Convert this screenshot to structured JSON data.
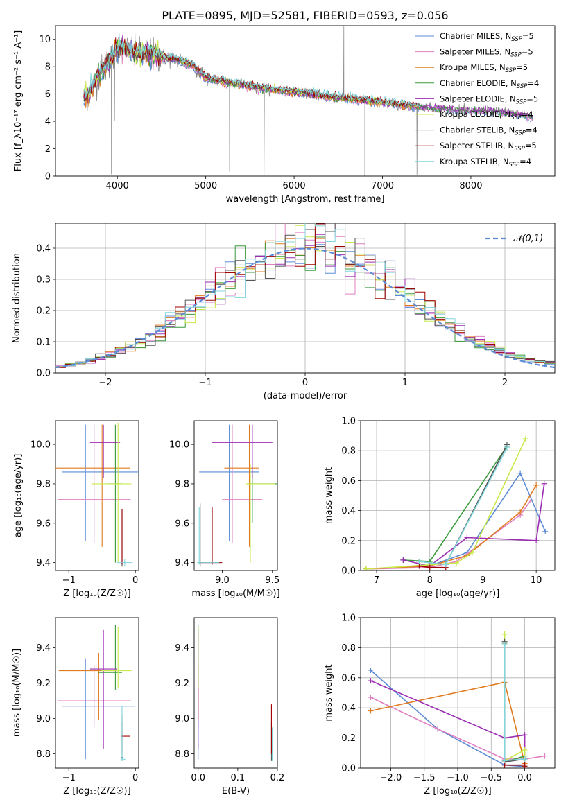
{
  "figure": {
    "title": "PLATE=0895, MJD=52581, FIBERID=0593, z=0.056"
  },
  "colors": {
    "Chabrier MILES": "#5b8bd6",
    "Salpeter MILES": "#e07fc2",
    "Kroupa MILES": "#e07b1f",
    "Chabrier ELODIE": "#3a9a3a",
    "Salpeter ELODIE": "#9b2db3",
    "Kroupa ELODIE": "#c7e94a",
    "Chabrier STELIB": "#555555",
    "Salpeter STELIB": "#a00000",
    "Kroupa STELIB": "#7fd6dd",
    "data": "#808080",
    "normal": "#5b8bd6"
  },
  "chart_data": [
    {
      "id": "spectrum",
      "type": "line",
      "xlabel": "wavelength [Angstrom, rest frame]",
      "ylabel": "Flux [f_λ 10^-17 erg cm^-2 s^-1 A^-1]",
      "xlim": [
        3300,
        8950
      ],
      "ylim": [
        0,
        11
      ],
      "xticks": [
        4000,
        5000,
        6000,
        7000,
        8000
      ],
      "yticks": [
        0,
        2,
        4,
        6,
        8,
        10
      ],
      "legend_position": "top-right",
      "legend": [
        "Chabrier MILES, N_SSP=5",
        "Salpeter MILES, N_SSP=5",
        "Kroupa MILES, N_SSP=5",
        "Chabrier ELODIE, N_SSP=4",
        "Salpeter ELODIE, N_SSP=5",
        "Kroupa ELODIE, N_SSP=4",
        "Chabrier STELIB, N_SSP=4",
        "Salpeter STELIB, N_SSP=5",
        "Kroupa STELIB, N_SSP=4"
      ],
      "continuum_x": [
        3620,
        3700,
        3800,
        3900,
        3950,
        4000,
        4100,
        4200,
        4300,
        4400,
        4500,
        4700,
        4860,
        4900,
        5000,
        5200,
        5400,
        5600,
        5800,
        6000,
        6200,
        6400,
        6600,
        6800,
        7000,
        7200,
        7400,
        7600,
        7800,
        8000,
        8200,
        8400,
        8600,
        8700
      ],
      "continuum_y": [
        5.8,
        6.2,
        7.5,
        8.3,
        8.8,
        9.4,
        9.3,
        9.0,
        8.9,
        8.9,
        8.7,
        8.5,
        8.1,
        7.8,
        7.2,
        6.9,
        6.7,
        6.5,
        6.3,
        6.2,
        6.0,
        5.8,
        5.7,
        5.5,
        5.4,
        5.2,
        5.1,
        5.0,
        4.9,
        4.8,
        4.8,
        4.7,
        4.5,
        4.3
      ],
      "absorption_lines": [
        {
          "x": 3933,
          "depth": 8.5
        },
        {
          "x": 3968,
          "depth": 5.0
        },
        {
          "x": 5270,
          "depth": 6.5
        },
        {
          "x": 5660,
          "depth": 6.5
        },
        {
          "x": 6800,
          "depth": 6.0
        },
        {
          "x": 7390,
          "depth": 5.0
        }
      ],
      "emission_lines": [
        {
          "x": 6563,
          "peak": 11.0
        }
      ]
    },
    {
      "id": "residuals",
      "type": "histogram",
      "xlabel": "(data-model)/error",
      "ylabel": "Normed distribution",
      "xlim": [
        -2.5,
        2.5
      ],
      "ylim": [
        0,
        0.48
      ],
      "xticks": [
        -2,
        -1,
        0,
        1,
        2
      ],
      "yticks": [
        0.0,
        0.1,
        0.2,
        0.3,
        0.4
      ],
      "legend": [
        "𝒩(0,1)"
      ],
      "legend_position": "top-right",
      "bin_width": 0.1,
      "normal": {
        "mean": 0,
        "sigma": 1
      }
    },
    {
      "id": "age-vs-Z",
      "type": "errorbar",
      "xlabel": "Z [log10(Z/Z⊙)]",
      "ylabel": "age [log10(age/yr)]",
      "xlim": [
        -1.2,
        0.05
      ],
      "ylim": [
        9.36,
        10.12
      ],
      "xticks": [
        -1,
        0
      ],
      "yticks": [
        9.4,
        9.6,
        9.8,
        10.0
      ],
      "points": [
        {
          "model": "Chabrier MILES",
          "x": -0.75,
          "xerr": [
            0.35,
            0.9
          ],
          "y": 9.86,
          "yerr": [
            0.35,
            0.24
          ]
        },
        {
          "model": "Salpeter MILES",
          "x": -0.62,
          "xerr": [
            0.55,
            0.55
          ],
          "y": 9.72,
          "yerr": [
            0.22,
            0.38
          ]
        },
        {
          "model": "Kroupa MILES",
          "x": -0.5,
          "xerr": [
            0.75,
            0.42
          ],
          "y": 9.88,
          "yerr": [
            0.4,
            0.22
          ]
        },
        {
          "model": "Chabrier ELODIE",
          "x": -0.3,
          "xerr": [
            0.1,
            0.1
          ],
          "y": 9.8,
          "yerr": [
            0.4,
            0.3
          ]
        },
        {
          "model": "Salpeter ELODIE",
          "x": -0.48,
          "xerr": [
            0.2,
            0.25
          ],
          "y": 10.01,
          "yerr": [
            0.18,
            0.09
          ]
        },
        {
          "model": "Kroupa ELODIE",
          "x": -0.26,
          "xerr": [
            0.4,
            0.2
          ],
          "y": 9.8,
          "yerr": [
            0.4,
            0.31
          ]
        },
        {
          "model": "Chabrier STELIB",
          "x": -0.2,
          "xerr": [
            0.02,
            0.02
          ],
          "y": 9.4,
          "yerr": [
            0.02,
            0.27
          ]
        },
        {
          "model": "Salpeter STELIB",
          "x": -0.2,
          "xerr": [
            0.02,
            0.02
          ],
          "y": 9.4,
          "yerr": [
            0.01,
            0.27
          ]
        },
        {
          "model": "Kroupa STELIB",
          "x": -0.16,
          "xerr": [
            0.12,
            0.12
          ],
          "y": 9.4,
          "yerr": [
            0.02,
            0.02
          ]
        }
      ]
    },
    {
      "id": "age-vs-mass",
      "type": "errorbar",
      "xlabel": "mass [log10(M/M⊙)]",
      "ylabel": "",
      "xlim": [
        8.72,
        9.55
      ],
      "ylim": [
        9.36,
        10.12
      ],
      "xticks": [
        9.0,
        9.5
      ],
      "yticks": [
        9.4,
        9.6,
        9.8,
        10.0
      ],
      "points": [
        {
          "model": "Chabrier MILES",
          "x": 9.07,
          "xerr": [
            0.3,
            0.3
          ],
          "y": 9.86,
          "yerr": [
            0.35,
            0.24
          ]
        },
        {
          "model": "Salpeter MILES",
          "x": 9.1,
          "xerr": [
            0.1,
            0.3
          ],
          "y": 9.72,
          "yerr": [
            0.22,
            0.38
          ]
        },
        {
          "model": "Kroupa MILES",
          "x": 9.27,
          "xerr": [
            0.25,
            0.1
          ],
          "y": 9.88,
          "yerr": [
            0.4,
            0.22
          ]
        },
        {
          "model": "Chabrier ELODIE",
          "x": 9.3,
          "xerr": [
            0.05,
            0.25
          ],
          "y": 9.8,
          "yerr": [
            0.2,
            0.05
          ]
        },
        {
          "model": "Salpeter ELODIE",
          "x": 9.3,
          "xerr": [
            0.4,
            0.2
          ],
          "y": 10.01,
          "yerr": [
            0.18,
            0.09
          ]
        },
        {
          "model": "Kroupa ELODIE",
          "x": 9.28,
          "xerr": [
            0.05,
            0.25
          ],
          "y": 9.8,
          "yerr": [
            0.4,
            0.1
          ]
        },
        {
          "model": "Chabrier STELIB",
          "x": 8.78,
          "xerr": [
            0.02,
            0.2
          ],
          "y": 9.4,
          "yerr": [
            0.02,
            0.3
          ]
        },
        {
          "model": "Salpeter STELIB",
          "x": 8.9,
          "xerr": [
            0.12,
            0.1
          ],
          "y": 9.4,
          "yerr": [
            0.01,
            0.28
          ]
        },
        {
          "model": "Kroupa STELIB",
          "x": 8.77,
          "xerr": [
            0.02,
            0.2
          ],
          "y": 9.4,
          "yerr": [
            0.01,
            0.28
          ]
        }
      ]
    },
    {
      "id": "weight-vs-age",
      "type": "line",
      "xlabel": "age [log10(age/yr)]",
      "ylabel": "mass weight",
      "xlim": [
        6.7,
        10.35
      ],
      "ylim": [
        0,
        1.0
      ],
      "xticks": [
        7,
        8,
        9,
        10
      ],
      "yticks": [
        0.0,
        0.2,
        0.4,
        0.6,
        0.8,
        1.0
      ],
      "series": [
        {
          "model": "Chabrier MILES",
          "x": [
            6.8,
            8.0,
            8.7,
            9.7,
            10.17
          ],
          "y": [
            0.01,
            0.03,
            0.12,
            0.65,
            0.26
          ]
        },
        {
          "model": "Salpeter MILES",
          "x": [
            6.8,
            8.0,
            8.5,
            9.7,
            9.9
          ],
          "y": [
            0.01,
            0.02,
            0.06,
            0.37,
            0.47
          ]
        },
        {
          "model": "Kroupa MILES",
          "x": [
            6.8,
            8.0,
            8.7,
            9.7,
            10.0
          ],
          "y": [
            0.01,
            0.03,
            0.1,
            0.39,
            0.57
          ]
        },
        {
          "model": "Chabrier ELODIE",
          "x": [
            7.5,
            8.0,
            9.45
          ],
          "y": [
            0.07,
            0.06,
            0.83
          ]
        },
        {
          "model": "Salpeter ELODIE",
          "x": [
            7.5,
            8.0,
            8.7,
            10.0,
            10.15
          ],
          "y": [
            0.07,
            0.03,
            0.22,
            0.2,
            0.58
          ]
        },
        {
          "model": "Kroupa ELODIE",
          "x": [
            6.8,
            8.5,
            8.8,
            9.8
          ],
          "y": [
            0.01,
            0.05,
            0.12,
            0.88
          ]
        },
        {
          "model": "Chabrier STELIB",
          "x": [
            7.8,
            8.3,
            9.45
          ],
          "y": [
            0.06,
            0.04,
            0.84
          ]
        },
        {
          "model": "Salpeter STELIB",
          "x": [
            7.8,
            8.0,
            8.3
          ],
          "y": [
            0.03,
            0.02,
            0.02
          ]
        },
        {
          "model": "Kroupa STELIB",
          "x": [
            7.8,
            8.3,
            9.45
          ],
          "y": [
            0.06,
            0.04,
            0.82
          ]
        }
      ]
    },
    {
      "id": "mass-vs-Z",
      "type": "errorbar",
      "xlabel": "Z [log10(Z/Z⊙)]",
      "ylabel": "mass [log10(M/M⊙)]",
      "xlim": [
        -1.2,
        0.05
      ],
      "ylim": [
        8.72,
        9.57
      ],
      "xticks": [
        -1,
        0
      ],
      "yticks": [
        8.8,
        9.0,
        9.2,
        9.4
      ],
      "points": [
        {
          "model": "Chabrier MILES",
          "x": -0.75,
          "xerr": [
            0.35,
            0.75
          ],
          "y": 9.07,
          "yerr": [
            0.3,
            0.27
          ]
        },
        {
          "model": "Salpeter MILES",
          "x": -0.62,
          "xerr": [
            0.55,
            0.55
          ],
          "y": 9.1,
          "yerr": [
            0.15,
            0.2
          ]
        },
        {
          "model": "Kroupa MILES",
          "x": -0.55,
          "xerr": [
            0.6,
            0.3
          ],
          "y": 9.27,
          "yerr": [
            0.28,
            0.1
          ]
        },
        {
          "model": "Chabrier ELODIE",
          "x": -0.3,
          "xerr": [
            0.25,
            0.1
          ],
          "y": 9.26,
          "yerr": [
            0.1,
            0.27
          ]
        },
        {
          "model": "Salpeter ELODIE",
          "x": -0.48,
          "xerr": [
            0.2,
            0.2
          ],
          "y": 9.28,
          "yerr": [
            0.45,
            0.22
          ]
        },
        {
          "model": "Kroupa ELODIE",
          "x": -0.26,
          "xerr": [
            0.25,
            0.2
          ],
          "y": 9.27,
          "yerr": [
            0.1,
            0.25
          ]
        },
        {
          "model": "Chabrier STELIB",
          "x": -0.2,
          "xerr": [
            0.02,
            0.02
          ],
          "y": 8.78,
          "yerr": [
            0.02,
            0.2
          ]
        },
        {
          "model": "Salpeter STELIB",
          "x": -0.2,
          "xerr": [
            0.02,
            0.12
          ],
          "y": 8.9,
          "yerr": [
            0.1,
            0.12
          ]
        },
        {
          "model": "Kroupa STELIB",
          "x": -0.2,
          "xerr": [
            0.02,
            0.05
          ],
          "y": 8.77,
          "yerr": [
            0.01,
            0.3
          ]
        }
      ]
    },
    {
      "id": "mass-vs-ebv",
      "type": "errorbar",
      "xlabel": "E(B-V)",
      "ylabel": "",
      "xlim": [
        -0.01,
        0.2
      ],
      "ylim": [
        8.72,
        9.57
      ],
      "xticks": [
        0.0,
        0.1,
        0.2
      ],
      "yticks": [
        8.8,
        9.0,
        9.2,
        9.4
      ],
      "points": [
        {
          "model": "Chabrier MILES",
          "x": 0.0,
          "xerr": [
            0.0,
            0.0
          ],
          "y": 9.07,
          "yerr": [
            0.3,
            0.27
          ]
        },
        {
          "model": "Salpeter MILES",
          "x": 0.0,
          "xerr": [
            0.0,
            0.0
          ],
          "y": 9.1,
          "yerr": [
            0.15,
            0.2
          ]
        },
        {
          "model": "Kroupa MILES",
          "x": 0.0,
          "xerr": [
            0.0,
            0.0
          ],
          "y": 9.27,
          "yerr": [
            0.28,
            0.1
          ]
        },
        {
          "model": "Chabrier ELODIE",
          "x": 0.0,
          "xerr": [
            0.0,
            0.0
          ],
          "y": 9.26,
          "yerr": [
            0.1,
            0.27
          ]
        },
        {
          "model": "Salpeter ELODIE",
          "x": 0.0,
          "xerr": [
            0.0,
            0.0
          ],
          "y": 9.28,
          "yerr": [
            0.45,
            0.22
          ]
        },
        {
          "model": "Kroupa ELODIE",
          "x": 0.0,
          "xerr": [
            0.0,
            0.0
          ],
          "y": 9.27,
          "yerr": [
            0.1,
            0.25
          ]
        },
        {
          "model": "Chabrier STELIB",
          "x": 0.185,
          "xerr": [
            0.0,
            0.0
          ],
          "y": 8.78,
          "yerr": [
            0.02,
            0.2
          ]
        },
        {
          "model": "Salpeter STELIB",
          "x": 0.185,
          "xerr": [
            0.0,
            0.0
          ],
          "y": 8.9,
          "yerr": [
            0.1,
            0.18
          ]
        },
        {
          "model": "Kroupa STELIB",
          "x": 0.187,
          "xerr": [
            0.0,
            0.0
          ],
          "y": 8.77,
          "yerr": [
            0.01,
            0.18
          ]
        }
      ]
    },
    {
      "id": "weight-vs-Z",
      "type": "line",
      "xlabel": "Z [log10(Z/Z⊙)]",
      "ylabel": "mass weight",
      "xlim": [
        -2.45,
        0.45
      ],
      "ylim": [
        0,
        1.0
      ],
      "xticks": [
        -2.0,
        -1.5,
        -1.0,
        -0.5,
        0.0
      ],
      "yticks": [
        0.0,
        0.2,
        0.4,
        0.6,
        0.8,
        1.0
      ],
      "series": [
        {
          "model": "Chabrier MILES",
          "x": [
            -2.3,
            -1.3,
            -0.3,
            0.0
          ],
          "y": [
            0.65,
            0.26,
            0.02,
            0.01
          ]
        },
        {
          "model": "Salpeter MILES",
          "x": [
            -2.3,
            -1.3,
            -0.3,
            0.0,
            0.3
          ],
          "y": [
            0.47,
            0.26,
            0.06,
            0.06,
            0.08
          ]
        },
        {
          "model": "Kroupa MILES",
          "x": [
            -2.3,
            -0.3,
            0.0,
            0.0
          ],
          "y": [
            0.38,
            0.57,
            0.03,
            0.01
          ]
        },
        {
          "model": "Chabrier ELODIE",
          "x": [
            -0.3,
            -0.3,
            0.0
          ],
          "y": [
            0.83,
            0.04,
            0.08
          ]
        },
        {
          "model": "Salpeter ELODIE",
          "x": [
            -2.3,
            -0.3,
            0.0,
            0.0
          ],
          "y": [
            0.58,
            0.2,
            0.22,
            0.02
          ]
        },
        {
          "model": "Kroupa ELODIE",
          "x": [
            -0.3,
            -0.3,
            0.0,
            0.0
          ],
          "y": [
            0.89,
            0.05,
            0.12,
            0.01
          ]
        },
        {
          "model": "Chabrier STELIB",
          "x": [
            -0.3,
            -0.3,
            0.0
          ],
          "y": [
            0.84,
            0.04,
            0.06
          ]
        },
        {
          "model": "Salpeter STELIB",
          "x": [
            -0.3,
            -0.3,
            0.0,
            0.0
          ],
          "y": [
            0.05,
            0.02,
            0.02,
            0.01
          ]
        },
        {
          "model": "Kroupa STELIB",
          "x": [
            -0.3,
            -0.3,
            0.0
          ],
          "y": [
            0.82,
            0.05,
            0.06
          ]
        }
      ]
    }
  ]
}
